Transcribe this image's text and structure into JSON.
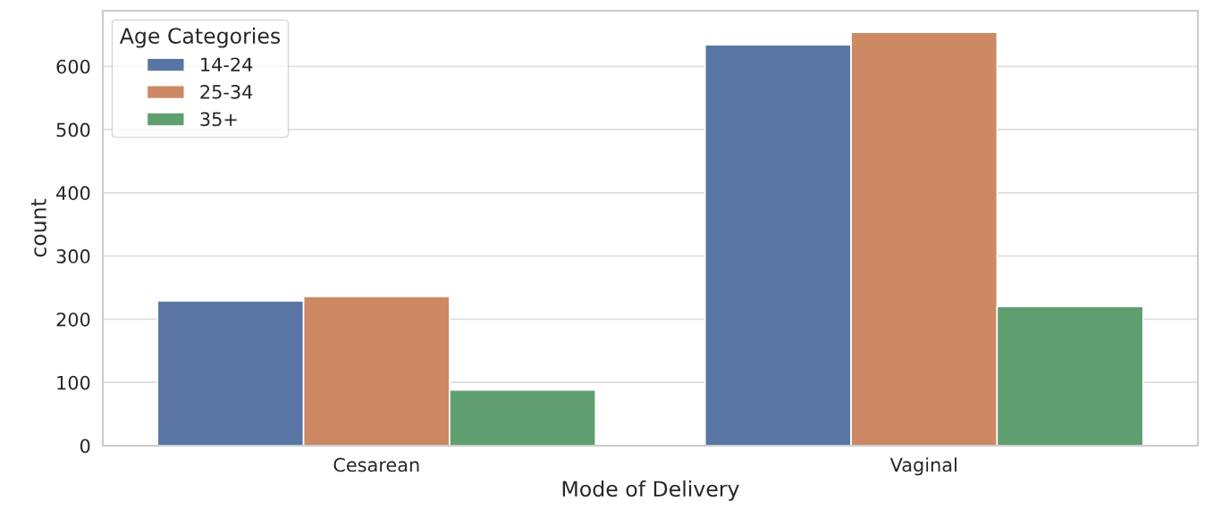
{
  "chart_data": {
    "type": "bar",
    "xlabel": "Mode of Delivery",
    "ylabel": "count",
    "legend_title": "Age Categories",
    "categories": [
      "Cesarean",
      "Vaginal"
    ],
    "series": [
      {
        "name": "14-24",
        "color": "#5875a4",
        "values": [
          229,
          634
        ]
      },
      {
        "name": "25-34",
        "color": "#cc8963",
        "values": [
          236,
          654
        ]
      },
      {
        "name": "35+",
        "color": "#5f9e6e",
        "values": [
          88,
          220
        ]
      }
    ],
    "ylim": [
      0,
      688
    ],
    "yticks": [
      0,
      100,
      200,
      300,
      400,
      500,
      600
    ],
    "grid": "y",
    "legend": "top left"
  }
}
